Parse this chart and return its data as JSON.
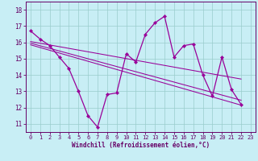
{
  "title": "",
  "xlabel": "Windchill (Refroidissement éolien,°C)",
  "xlim": [
    -0.5,
    23.5
  ],
  "ylim": [
    10.5,
    18.5
  ],
  "yticks": [
    11,
    12,
    13,
    14,
    15,
    16,
    17,
    18
  ],
  "xticks": [
    0,
    1,
    2,
    3,
    4,
    5,
    6,
    7,
    8,
    9,
    10,
    11,
    12,
    13,
    14,
    15,
    16,
    17,
    18,
    19,
    20,
    21,
    22,
    23
  ],
  "bg_color": "#c8eef5",
  "line_color": "#990099",
  "grid_color": "#99cccc",
  "main_line": {
    "x": [
      0,
      1,
      2,
      3,
      4,
      5,
      6,
      7,
      8,
      9,
      10,
      11,
      12,
      13,
      14,
      15,
      16,
      17,
      18,
      19,
      20,
      21,
      22
    ],
    "y": [
      16.7,
      16.2,
      15.8,
      15.1,
      14.4,
      13.0,
      11.5,
      10.8,
      12.8,
      12.9,
      15.3,
      14.8,
      16.5,
      17.2,
      17.6,
      15.1,
      15.8,
      15.9,
      14.0,
      12.7,
      15.1,
      13.1,
      12.2
    ]
  },
  "trend_lines": [
    {
      "x": [
        0,
        22
      ],
      "y": [
        15.85,
        12.15
      ]
    },
    {
      "x": [
        0,
        22
      ],
      "y": [
        15.95,
        12.45
      ]
    },
    {
      "x": [
        0,
        22
      ],
      "y": [
        16.05,
        13.75
      ]
    }
  ]
}
